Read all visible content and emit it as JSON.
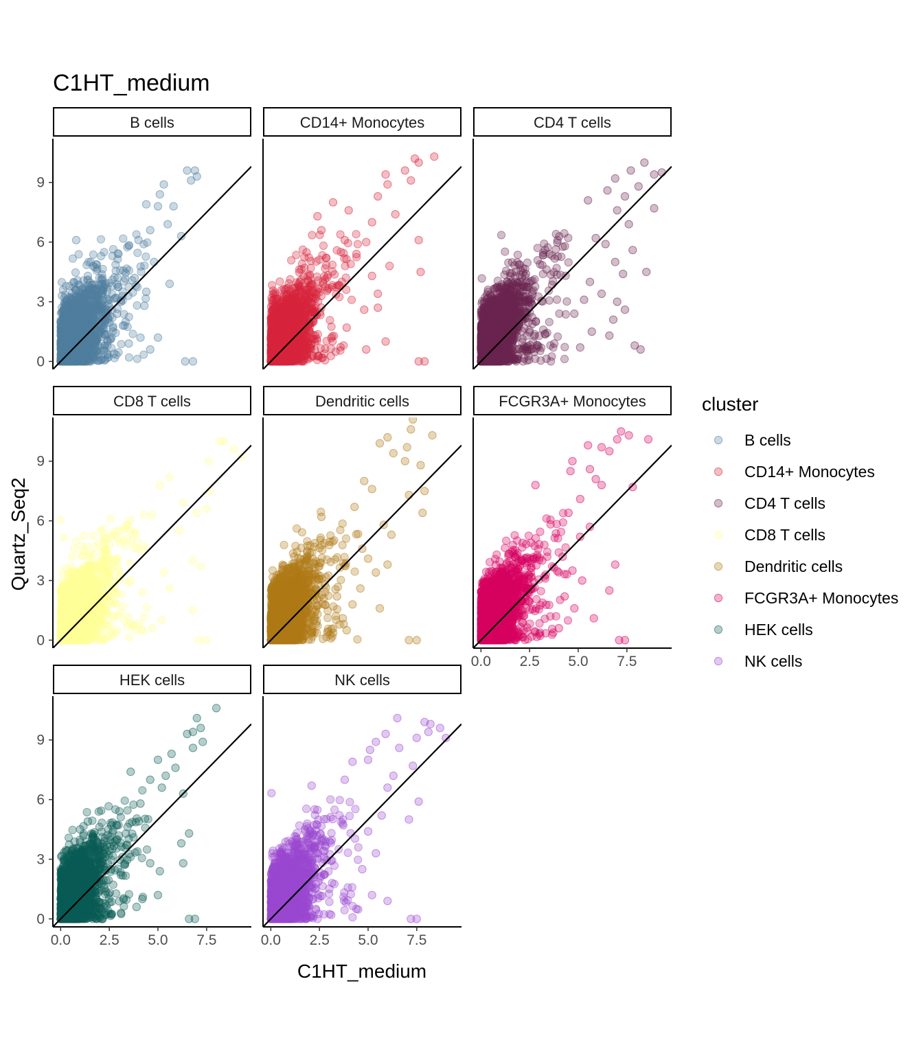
{
  "chart_data": {
    "type": "scatter",
    "title": "C1HT_medium",
    "xlabel": "C1HT_medium",
    "ylabel": "Quartz_Seq2",
    "xlim": [
      -0.4,
      9.8
    ],
    "ylim": [
      -0.4,
      11.2
    ],
    "x_ticks": [
      "0.0",
      "2.5",
      "5.0",
      "7.5"
    ],
    "x_tick_values": [
      0,
      2.5,
      5,
      7.5
    ],
    "y_ticks": [
      "0",
      "3",
      "6",
      "9"
    ],
    "y_tick_values": [
      0,
      3,
      6,
      9
    ],
    "reference_line": "y = x",
    "grid": false,
    "legend": {
      "title": "cluster",
      "position": "right"
    },
    "series": [
      {
        "name": "B cells",
        "color": "#4F7F9E",
        "points": [
          [
            6.5,
            9.6
          ],
          [
            6.9,
            9.6
          ],
          [
            7.0,
            9.3
          ],
          [
            6.7,
            9.1
          ],
          [
            5.3,
            8.9
          ],
          [
            5.1,
            8.4
          ],
          [
            4.4,
            7.9
          ],
          [
            5.0,
            7.8
          ],
          [
            5.8,
            7.8
          ],
          [
            5.5,
            6.9
          ],
          [
            4.6,
            6.6
          ],
          [
            4.0,
            6.1
          ],
          [
            6.2,
            6.3
          ],
          [
            0.8,
            6.1
          ],
          [
            4.8,
            5.0
          ],
          [
            3.8,
            4.2
          ],
          [
            4.4,
            3.5
          ],
          [
            3.2,
            1.8
          ],
          [
            4.1,
            1.2
          ],
          [
            4.6,
            0.6
          ],
          [
            5.0,
            1.2
          ],
          [
            3.5,
            0.9
          ],
          [
            6.8,
            0.0
          ],
          [
            6.4,
            0.0
          ],
          [
            2.9,
            2.4
          ],
          [
            2.2,
            3.8
          ],
          [
            1.4,
            4.3
          ],
          [
            3.1,
            3.0
          ],
          [
            5.6,
            3.9
          ],
          [
            4.3,
            2.8
          ]
        ]
      },
      {
        "name": "CD14+ Monocytes",
        "color": "#D7263D",
        "points": [
          [
            8.4,
            10.3
          ],
          [
            7.4,
            10.2
          ],
          [
            7.6,
            10.0
          ],
          [
            6.9,
            9.6
          ],
          [
            7.2,
            9.1
          ],
          [
            5.9,
            9.4
          ],
          [
            6.0,
            8.9
          ],
          [
            5.5,
            8.3
          ],
          [
            4.0,
            7.6
          ],
          [
            3.2,
            8.0
          ],
          [
            5.2,
            7.0
          ],
          [
            6.4,
            7.4
          ],
          [
            3.8,
            6.1
          ],
          [
            2.4,
            7.3
          ],
          [
            2.6,
            6.6
          ],
          [
            4.9,
            6.0
          ],
          [
            7.6,
            6.1
          ],
          [
            7.7,
            4.5
          ],
          [
            5.2,
            4.3
          ],
          [
            6.1,
            4.8
          ],
          [
            4.8,
            2.6
          ],
          [
            5.5,
            2.7
          ],
          [
            5.9,
            1.0
          ],
          [
            4.9,
            0.6
          ],
          [
            7.6,
            0.0
          ],
          [
            7.9,
            0.0
          ],
          [
            3.5,
            3.8
          ],
          [
            4.4,
            5.4
          ],
          [
            5.5,
            3.4
          ],
          [
            3.9,
            1.7
          ]
        ]
      },
      {
        "name": "CD4 T cells",
        "color": "#6B2550",
        "points": [
          [
            8.4,
            10.0
          ],
          [
            8.9,
            9.4
          ],
          [
            9.3,
            9.5
          ],
          [
            7.7,
            9.6
          ],
          [
            6.9,
            9.2
          ],
          [
            6.5,
            8.6
          ],
          [
            7.4,
            8.3
          ],
          [
            8.1,
            8.8
          ],
          [
            7.0,
            7.6
          ],
          [
            8.9,
            7.7
          ],
          [
            5.5,
            8.1
          ],
          [
            7.6,
            6.9
          ],
          [
            5.9,
            6.2
          ],
          [
            6.4,
            5.9
          ],
          [
            7.8,
            5.6
          ],
          [
            8.5,
            4.5
          ],
          [
            7.3,
            4.4
          ],
          [
            6.9,
            5.0
          ],
          [
            5.6,
            4.0
          ],
          [
            6.2,
            3.4
          ],
          [
            7.0,
            3.0
          ],
          [
            7.4,
            2.6
          ],
          [
            6.8,
            2.1
          ],
          [
            8.2,
            0.6
          ],
          [
            7.9,
            0.8
          ],
          [
            6.6,
            1.3
          ],
          [
            5.7,
            1.5
          ],
          [
            5.1,
            0.7
          ],
          [
            4.8,
            2.4
          ],
          [
            5.3,
            3.1
          ]
        ]
      },
      {
        "name": "CD8 T cells",
        "color": "#FFFF99",
        "points": [
          [
            8.2,
            10.0
          ],
          [
            8.4,
            10.0
          ],
          [
            8.9,
            9.6
          ],
          [
            9.3,
            9.2
          ],
          [
            7.6,
            9.0
          ],
          [
            5.6,
            8.2
          ],
          [
            5.1,
            7.8
          ],
          [
            7.7,
            7.5
          ],
          [
            7.5,
            6.6
          ],
          [
            7.0,
            6.4
          ],
          [
            6.3,
            6.9
          ],
          [
            4.7,
            6.3
          ],
          [
            3.4,
            5.8
          ],
          [
            0.7,
            4.6
          ],
          [
            2.2,
            5.1
          ],
          [
            4.2,
            4.5
          ],
          [
            5.3,
            3.4
          ],
          [
            6.8,
            4.0
          ],
          [
            7.2,
            3.7
          ],
          [
            5.6,
            2.6
          ],
          [
            4.2,
            2.4
          ],
          [
            3.2,
            1.7
          ],
          [
            5.2,
            1.0
          ],
          [
            7.1,
            0.0
          ],
          [
            7.5,
            0.0
          ],
          [
            6.8,
            1.5
          ],
          [
            2.5,
            4.8
          ],
          [
            6.1,
            5.5
          ],
          [
            4.7,
            0.6
          ],
          [
            3.6,
            3.0
          ]
        ]
      },
      {
        "name": "Dendritic cells",
        "color": "#B07A17",
        "points": [
          [
            7.3,
            11.1
          ],
          [
            7.2,
            10.6
          ],
          [
            8.3,
            10.3
          ],
          [
            6.0,
            10.2
          ],
          [
            5.6,
            9.9
          ],
          [
            7.0,
            9.7
          ],
          [
            6.3,
            9.4
          ],
          [
            6.9,
            9.0
          ],
          [
            7.7,
            8.8
          ],
          [
            4.8,
            8.0
          ],
          [
            5.2,
            7.6
          ],
          [
            7.9,
            7.5
          ],
          [
            7.1,
            7.3
          ],
          [
            4.3,
            6.7
          ],
          [
            7.8,
            6.4
          ],
          [
            2.6,
            6.2
          ],
          [
            5.8,
            5.8
          ],
          [
            6.2,
            5.3
          ],
          [
            4.7,
            4.6
          ],
          [
            5.4,
            3.4
          ],
          [
            6.0,
            3.8
          ],
          [
            4.6,
            2.6
          ],
          [
            5.6,
            1.6
          ],
          [
            3.7,
            1.1
          ],
          [
            4.2,
            1.8
          ],
          [
            7.1,
            0.0
          ],
          [
            7.5,
            0.0
          ],
          [
            3.9,
            0.5
          ],
          [
            3.4,
            2.2
          ],
          [
            5.0,
            4.1
          ]
        ]
      },
      {
        "name": "FCGR3A+ Monocytes",
        "color": "#D6005F",
        "points": [
          [
            7.2,
            10.5
          ],
          [
            7.6,
            10.3
          ],
          [
            8.6,
            10.1
          ],
          [
            7.0,
            10.1
          ],
          [
            5.5,
            9.8
          ],
          [
            6.2,
            9.7
          ],
          [
            6.6,
            9.5
          ],
          [
            4.7,
            9.0
          ],
          [
            5.6,
            8.6
          ],
          [
            4.6,
            8.5
          ],
          [
            5.9,
            8.1
          ],
          [
            6.2,
            7.8
          ],
          [
            7.8,
            7.7
          ],
          [
            2.8,
            7.8
          ],
          [
            5.1,
            7.1
          ],
          [
            4.5,
            6.4
          ],
          [
            5.6,
            5.7
          ],
          [
            5.1,
            5.2
          ],
          [
            6.9,
            3.8
          ],
          [
            5.2,
            3.0
          ],
          [
            4.2,
            4.2
          ],
          [
            6.6,
            2.5
          ],
          [
            4.8,
            1.6
          ],
          [
            5.8,
            1.1
          ],
          [
            7.1,
            0.0
          ],
          [
            7.4,
            0.0
          ],
          [
            4.3,
            2.2
          ],
          [
            3.3,
            3.1
          ],
          [
            4.0,
            0.6
          ],
          [
            4.7,
            3.5
          ]
        ]
      },
      {
        "name": "HEK cells",
        "color": "#0B5C55",
        "points": [
          [
            8.0,
            10.6
          ],
          [
            7.0,
            10.1
          ],
          [
            6.8,
            9.4
          ],
          [
            7.2,
            9.6
          ],
          [
            6.5,
            9.3
          ],
          [
            7.3,
            8.9
          ],
          [
            6.8,
            8.6
          ],
          [
            5.7,
            8.3
          ],
          [
            5.0,
            8.0
          ],
          [
            5.9,
            7.6
          ],
          [
            5.4,
            7.2
          ],
          [
            4.6,
            7.0
          ],
          [
            3.6,
            7.4
          ],
          [
            5.2,
            6.6
          ],
          [
            6.3,
            6.3
          ],
          [
            4.1,
            5.8
          ],
          [
            6.6,
            4.3
          ],
          [
            6.2,
            3.8
          ],
          [
            6.3,
            2.8
          ],
          [
            5.1,
            2.4
          ],
          [
            4.6,
            2.8
          ],
          [
            5.0,
            1.2
          ],
          [
            4.2,
            1.0
          ],
          [
            3.9,
            0.6
          ],
          [
            6.6,
            0.0
          ],
          [
            6.9,
            0.0
          ],
          [
            3.1,
            0.3
          ],
          [
            0.3,
            3.1
          ],
          [
            1.0,
            4.5
          ],
          [
            1.4,
            4.9
          ]
        ]
      },
      {
        "name": "NK cells",
        "color": "#9A48D0",
        "points": [
          [
            6.5,
            10.1
          ],
          [
            7.9,
            9.9
          ],
          [
            8.2,
            9.8
          ],
          [
            8.7,
            9.6
          ],
          [
            8.1,
            9.4
          ],
          [
            9.0,
            9.1
          ],
          [
            7.5,
            9.1
          ],
          [
            5.9,
            9.3
          ],
          [
            5.4,
            8.9
          ],
          [
            5.1,
            8.5
          ],
          [
            6.6,
            8.6
          ],
          [
            5.0,
            8.0
          ],
          [
            4.2,
            7.9
          ],
          [
            7.3,
            7.7
          ],
          [
            6.3,
            7.2
          ],
          [
            6.0,
            6.6
          ],
          [
            3.8,
            7.0
          ],
          [
            2.1,
            6.7
          ],
          [
            7.6,
            5.9
          ],
          [
            5.7,
            5.2
          ],
          [
            7.1,
            5.0
          ],
          [
            5.0,
            4.4
          ],
          [
            5.4,
            3.3
          ],
          [
            4.7,
            2.5
          ],
          [
            5.2,
            1.2
          ],
          [
            6.0,
            0.9
          ],
          [
            7.2,
            0.0
          ],
          [
            7.5,
            0.0
          ],
          [
            4.4,
            0.5
          ],
          [
            3.1,
            0.2
          ]
        ]
      }
    ]
  }
}
